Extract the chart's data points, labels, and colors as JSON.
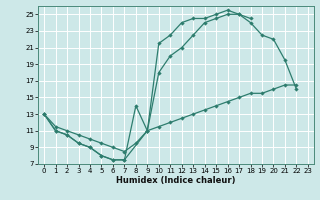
{
  "xlabel": "Humidex (Indice chaleur)",
  "bg_color": "#cde8e8",
  "line_color": "#2e7d6e",
  "grid_color": "#ffffff",
  "xlim": [
    -0.5,
    23.5
  ],
  "ylim": [
    7,
    26
  ],
  "xticks": [
    0,
    1,
    2,
    3,
    4,
    5,
    6,
    7,
    8,
    9,
    10,
    11,
    12,
    13,
    14,
    15,
    16,
    17,
    18,
    19,
    20,
    21,
    22,
    23
  ],
  "yticks": [
    7,
    9,
    11,
    13,
    15,
    17,
    19,
    21,
    23,
    25
  ],
  "line1_x": [
    0,
    1,
    2,
    3,
    4,
    5,
    6,
    7,
    9,
    10,
    11,
    12,
    13,
    14,
    15,
    16,
    17,
    18
  ],
  "line1_y": [
    13,
    11,
    10.5,
    9.5,
    9,
    8,
    7.5,
    7.5,
    11,
    21.5,
    22.5,
    24,
    24.5,
    24.5,
    25,
    25.5,
    25,
    24.5
  ],
  "line2_x": [
    0,
    1,
    2,
    3,
    4,
    5,
    6,
    7,
    8,
    9,
    10,
    11,
    12,
    13,
    14,
    15,
    16,
    17,
    18,
    19,
    20,
    21,
    22
  ],
  "line2_y": [
    13,
    11,
    10.5,
    9.5,
    9,
    8,
    7.5,
    7.5,
    14,
    11,
    18,
    20,
    21,
    22.5,
    24,
    24.5,
    25,
    25,
    24,
    22.5,
    22,
    19.5,
    16
  ],
  "line3_x": [
    0,
    1,
    2,
    3,
    4,
    5,
    6,
    7,
    8,
    9,
    10,
    11,
    12,
    13,
    14,
    15,
    16,
    17,
    18,
    19,
    20,
    21,
    22
  ],
  "line3_y": [
    13,
    11.5,
    11,
    10.5,
    10,
    9.5,
    9,
    8.5,
    9.5,
    11,
    11.5,
    12,
    12.5,
    13,
    13.5,
    14,
    14.5,
    15,
    15.5,
    15.5,
    16,
    16.5,
    16.5
  ]
}
